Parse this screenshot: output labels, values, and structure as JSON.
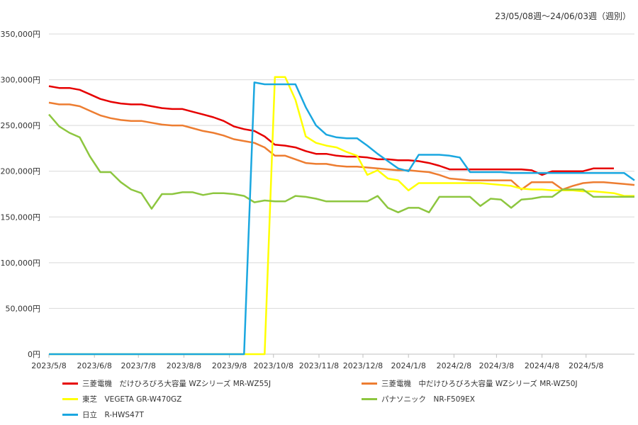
{
  "chart_data": {
    "type": "line",
    "subtitle": "23/05/08週〜24/06/03週（週別）",
    "xlabel": "",
    "ylabel": "",
    "ylim": [
      0,
      350000
    ],
    "yticks": [
      0,
      50000,
      100000,
      150000,
      200000,
      250000,
      300000,
      350000
    ],
    "ytick_labels": [
      "0円",
      "50,000円",
      "100,000円",
      "150,000円",
      "200,000円",
      "250,000円",
      "300,000円",
      "350,000円"
    ],
    "x_tick_labels": [
      "2023/5/8",
      "2023/6/8",
      "2023/7/8",
      "2023/8/8",
      "2023/9/8",
      "2023/10/8",
      "2023/11/8",
      "2023/12/8",
      "2024/1/8",
      "2024/2/8",
      "2024/3/8",
      "2024/4/8",
      "2024/5/8"
    ],
    "x_tick_weeks": [
      0,
      4.43,
      8.71,
      13.14,
      17.57,
      21.86,
      26.29,
      30.57,
      35,
      39.43,
      43.57,
      48,
      52.29
    ],
    "grid": "horizontal",
    "legend_position": "bottom",
    "series": [
      {
        "name": "三菱電機　だけひろびろ大容量 WZシリーズ MR-WZ55J",
        "color": "#e60000",
        "points": [
          [
            0,
            293000
          ],
          [
            1,
            291000
          ],
          [
            2,
            291000
          ],
          [
            3,
            289000
          ],
          [
            4,
            284000
          ],
          [
            5,
            279000
          ],
          [
            6,
            276000
          ],
          [
            7,
            274000
          ],
          [
            8,
            273000
          ],
          [
            9,
            273000
          ],
          [
            10,
            271000
          ],
          [
            11,
            269000
          ],
          [
            12,
            268000
          ],
          [
            13,
            268000
          ],
          [
            14,
            265000
          ],
          [
            15,
            262000
          ],
          [
            16,
            259000
          ],
          [
            17,
            255000
          ],
          [
            18,
            249000
          ],
          [
            19,
            246000
          ],
          [
            20,
            244000
          ],
          [
            21,
            238000
          ],
          [
            22,
            229000
          ],
          [
            23,
            228000
          ],
          [
            24,
            226000
          ],
          [
            25,
            222000
          ],
          [
            26,
            219000
          ],
          [
            27,
            219000
          ],
          [
            28,
            217000
          ],
          [
            29,
            216000
          ],
          [
            30,
            216000
          ],
          [
            31,
            215000
          ],
          [
            32,
            213000
          ],
          [
            33,
            213000
          ],
          [
            34,
            212000
          ],
          [
            35,
            212000
          ],
          [
            36,
            211000
          ],
          [
            37,
            209000
          ],
          [
            38,
            206000
          ],
          [
            39,
            202000
          ],
          [
            40,
            202000
          ],
          [
            41,
            202000
          ],
          [
            42,
            202000
          ],
          [
            43,
            202000
          ],
          [
            44,
            202000
          ],
          [
            45,
            202000
          ],
          [
            46,
            202000
          ],
          [
            47,
            201000
          ],
          [
            48,
            196000
          ],
          [
            49,
            200000
          ],
          [
            50,
            200000
          ],
          [
            51,
            200000
          ],
          [
            52,
            200000
          ],
          [
            53,
            203000
          ],
          [
            54,
            203000
          ],
          [
            55,
            203000
          ]
        ]
      },
      {
        "name": "三菱電機　中だけひろびろ大容量 WZシリーズ MR-WZ50J",
        "color": "#ed7d31",
        "points": [
          [
            0,
            275000
          ],
          [
            1,
            273000
          ],
          [
            2,
            273000
          ],
          [
            3,
            271000
          ],
          [
            4,
            266000
          ],
          [
            5,
            261000
          ],
          [
            6,
            258000
          ],
          [
            7,
            256000
          ],
          [
            8,
            255000
          ],
          [
            9,
            255000
          ],
          [
            10,
            253000
          ],
          [
            11,
            251000
          ],
          [
            12,
            250000
          ],
          [
            13,
            250000
          ],
          [
            14,
            247000
          ],
          [
            15,
            244000
          ],
          [
            16,
            242000
          ],
          [
            17,
            239000
          ],
          [
            18,
            235000
          ],
          [
            19,
            233000
          ],
          [
            20,
            231000
          ],
          [
            21,
            226000
          ],
          [
            22,
            217000
          ],
          [
            23,
            217000
          ],
          [
            24,
            213000
          ],
          [
            25,
            209000
          ],
          [
            26,
            208000
          ],
          [
            27,
            208000
          ],
          [
            28,
            206000
          ],
          [
            29,
            205000
          ],
          [
            30,
            205000
          ],
          [
            31,
            204000
          ],
          [
            32,
            203000
          ],
          [
            33,
            202000
          ],
          [
            34,
            201000
          ],
          [
            35,
            201000
          ],
          [
            36,
            200000
          ],
          [
            37,
            199000
          ],
          [
            38,
            196000
          ],
          [
            39,
            192000
          ],
          [
            40,
            191000
          ],
          [
            41,
            190000
          ],
          [
            42,
            190000
          ],
          [
            43,
            190000
          ],
          [
            44,
            190000
          ],
          [
            45,
            190000
          ],
          [
            46,
            180000
          ],
          [
            47,
            188000
          ],
          [
            48,
            188000
          ],
          [
            49,
            188000
          ],
          [
            50,
            180000
          ],
          [
            51,
            184000
          ],
          [
            52,
            187000
          ],
          [
            53,
            188000
          ],
          [
            54,
            188000
          ],
          [
            55,
            187000
          ],
          [
            56,
            186000
          ],
          [
            57,
            185000
          ]
        ]
      },
      {
        "name": "東芝　VEGETA GR-W470GZ",
        "color": "#ffff00",
        "points": [
          [
            0,
            0
          ],
          [
            1,
            0
          ],
          [
            2,
            0
          ],
          [
            3,
            0
          ],
          [
            4,
            0
          ],
          [
            5,
            0
          ],
          [
            6,
            0
          ],
          [
            7,
            0
          ],
          [
            8,
            0
          ],
          [
            9,
            0
          ],
          [
            10,
            0
          ],
          [
            11,
            0
          ],
          [
            12,
            0
          ],
          [
            13,
            0
          ],
          [
            14,
            0
          ],
          [
            15,
            0
          ],
          [
            16,
            0
          ],
          [
            17,
            0
          ],
          [
            18,
            0
          ],
          [
            19,
            0
          ],
          [
            20,
            0
          ],
          [
            21,
            0
          ],
          [
            22,
            303000
          ],
          [
            23,
            303000
          ],
          [
            24,
            278000
          ],
          [
            25,
            238000
          ],
          [
            26,
            231000
          ],
          [
            27,
            228000
          ],
          [
            28,
            226000
          ],
          [
            29,
            221000
          ],
          [
            30,
            217000
          ],
          [
            31,
            196000
          ],
          [
            32,
            201000
          ],
          [
            33,
            192000
          ],
          [
            34,
            190000
          ],
          [
            35,
            179000
          ],
          [
            36,
            187000
          ],
          [
            37,
            187000
          ],
          [
            38,
            187000
          ],
          [
            39,
            187000
          ],
          [
            40,
            187000
          ],
          [
            41,
            187000
          ],
          [
            42,
            187000
          ],
          [
            43,
            186000
          ],
          [
            44,
            185000
          ],
          [
            45,
            184000
          ],
          [
            46,
            181000
          ],
          [
            47,
            180000
          ],
          [
            48,
            180000
          ],
          [
            49,
            179000
          ],
          [
            50,
            179000
          ],
          [
            51,
            179000
          ],
          [
            52,
            178000
          ],
          [
            53,
            178000
          ],
          [
            54,
            177000
          ],
          [
            55,
            176000
          ],
          [
            56,
            173000
          ],
          [
            57,
            173000
          ]
        ]
      },
      {
        "name": "パナソニック　NR-F509EX",
        "color": "#8dc63f",
        "points": [
          [
            0,
            262000
          ],
          [
            1,
            249000
          ],
          [
            2,
            242000
          ],
          [
            3,
            237000
          ],
          [
            4,
            216000
          ],
          [
            5,
            199000
          ],
          [
            6,
            199000
          ],
          [
            7,
            188000
          ],
          [
            8,
            180000
          ],
          [
            9,
            176000
          ],
          [
            10,
            159000
          ],
          [
            11,
            175000
          ],
          [
            12,
            175000
          ],
          [
            13,
            177000
          ],
          [
            14,
            177000
          ],
          [
            15,
            174000
          ],
          [
            16,
            176000
          ],
          [
            17,
            176000
          ],
          [
            18,
            175000
          ],
          [
            19,
            173000
          ],
          [
            20,
            166000
          ],
          [
            21,
            168000
          ],
          [
            22,
            167000
          ],
          [
            23,
            167000
          ],
          [
            24,
            173000
          ],
          [
            25,
            172000
          ],
          [
            26,
            170000
          ],
          [
            27,
            167000
          ],
          [
            28,
            167000
          ],
          [
            29,
            167000
          ],
          [
            30,
            167000
          ],
          [
            31,
            167000
          ],
          [
            32,
            173000
          ],
          [
            33,
            160000
          ],
          [
            34,
            155000
          ],
          [
            35,
            160000
          ],
          [
            36,
            160000
          ],
          [
            37,
            155000
          ],
          [
            38,
            172000
          ],
          [
            39,
            172000
          ],
          [
            40,
            172000
          ],
          [
            41,
            172000
          ],
          [
            42,
            162000
          ],
          [
            43,
            170000
          ],
          [
            44,
            169000
          ],
          [
            45,
            160000
          ],
          [
            46,
            169000
          ],
          [
            47,
            170000
          ],
          [
            48,
            172000
          ],
          [
            49,
            172000
          ],
          [
            50,
            180000
          ],
          [
            51,
            180000
          ],
          [
            52,
            180000
          ],
          [
            53,
            172000
          ],
          [
            54,
            172000
          ],
          [
            55,
            172000
          ],
          [
            56,
            172000
          ],
          [
            57,
            172000
          ]
        ]
      },
      {
        "name": "日立　R-HWS47T",
        "color": "#1aa7e0",
        "points": [
          [
            0,
            0
          ],
          [
            1,
            0
          ],
          [
            2,
            0
          ],
          [
            3,
            0
          ],
          [
            4,
            0
          ],
          [
            5,
            0
          ],
          [
            6,
            0
          ],
          [
            7,
            0
          ],
          [
            8,
            0
          ],
          [
            9,
            0
          ],
          [
            10,
            0
          ],
          [
            11,
            0
          ],
          [
            12,
            0
          ],
          [
            13,
            0
          ],
          [
            14,
            0
          ],
          [
            15,
            0
          ],
          [
            16,
            0
          ],
          [
            17,
            0
          ],
          [
            18,
            0
          ],
          [
            19,
            0
          ],
          [
            20,
            297000
          ],
          [
            21,
            295000
          ],
          [
            22,
            295000
          ],
          [
            23,
            295000
          ],
          [
            24,
            295000
          ],
          [
            25,
            270000
          ],
          [
            26,
            250000
          ],
          [
            27,
            240000
          ],
          [
            28,
            237000
          ],
          [
            29,
            236000
          ],
          [
            30,
            236000
          ],
          [
            31,
            228000
          ],
          [
            32,
            219000
          ],
          [
            33,
            211000
          ],
          [
            34,
            203000
          ],
          [
            35,
            200000
          ],
          [
            36,
            218000
          ],
          [
            37,
            218000
          ],
          [
            38,
            218000
          ],
          [
            39,
            217000
          ],
          [
            40,
            215000
          ],
          [
            41,
            199000
          ],
          [
            42,
            199000
          ],
          [
            43,
            199000
          ],
          [
            44,
            199000
          ],
          [
            45,
            198000
          ],
          [
            46,
            198000
          ],
          [
            47,
            198000
          ],
          [
            48,
            198000
          ],
          [
            49,
            198000
          ],
          [
            50,
            198000
          ],
          [
            51,
            198000
          ],
          [
            52,
            198000
          ],
          [
            53,
            198000
          ],
          [
            54,
            198000
          ],
          [
            55,
            198000
          ],
          [
            56,
            198000
          ],
          [
            57,
            190000
          ]
        ]
      }
    ]
  }
}
